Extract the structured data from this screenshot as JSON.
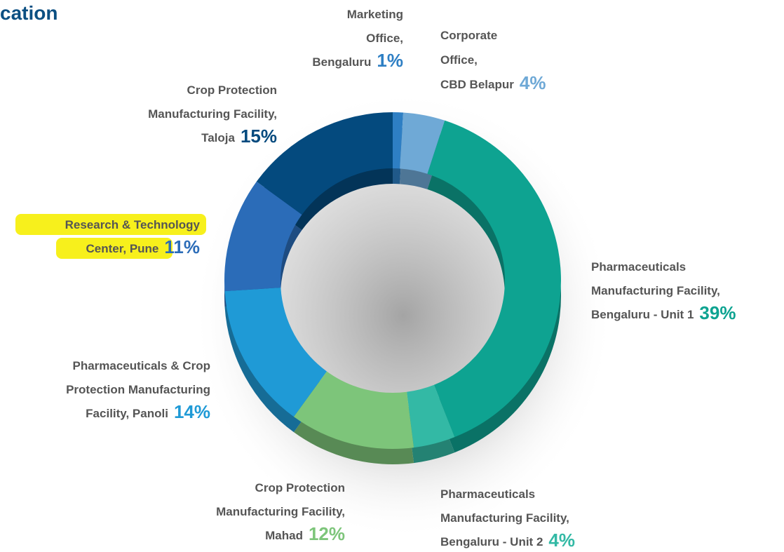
{
  "chart_data": {
    "type": "donut",
    "title": "cation",
    "categories": [
      "Marketing\nOffice,\nBengaluru",
      "Corporate\nOffice,\nCBD Belapur",
      "Pharmaceuticals\nManufacturing Facility,\nBengaluru - Unit 1",
      "Pharmaceuticals\nManufacturing Facility,\nBengaluru - Unit 2",
      "Crop Protection\nManufacturing Facility,\nMahad",
      "Pharmaceuticals & Crop\nProtection Manufacturing\nFacility, Panoli",
      "Research & Technology\nCenter, Pune",
      "Crop Protection\nManufacturing Facility,\nTaloja"
    ],
    "values": [
      1,
      4,
      39,
      4,
      12,
      14,
      11,
      15
    ],
    "value_labels": [
      "1%",
      "4%",
      "39%",
      "4%",
      "12%",
      "14%",
      "11%",
      "15%"
    ],
    "colors": [
      "#2e7fc4",
      "#6fa9d6",
      "#0ea391",
      "#33b9a5",
      "#7dc57a",
      "#1f9ad6",
      "#2b6cb8",
      "#044a7e"
    ]
  }
}
